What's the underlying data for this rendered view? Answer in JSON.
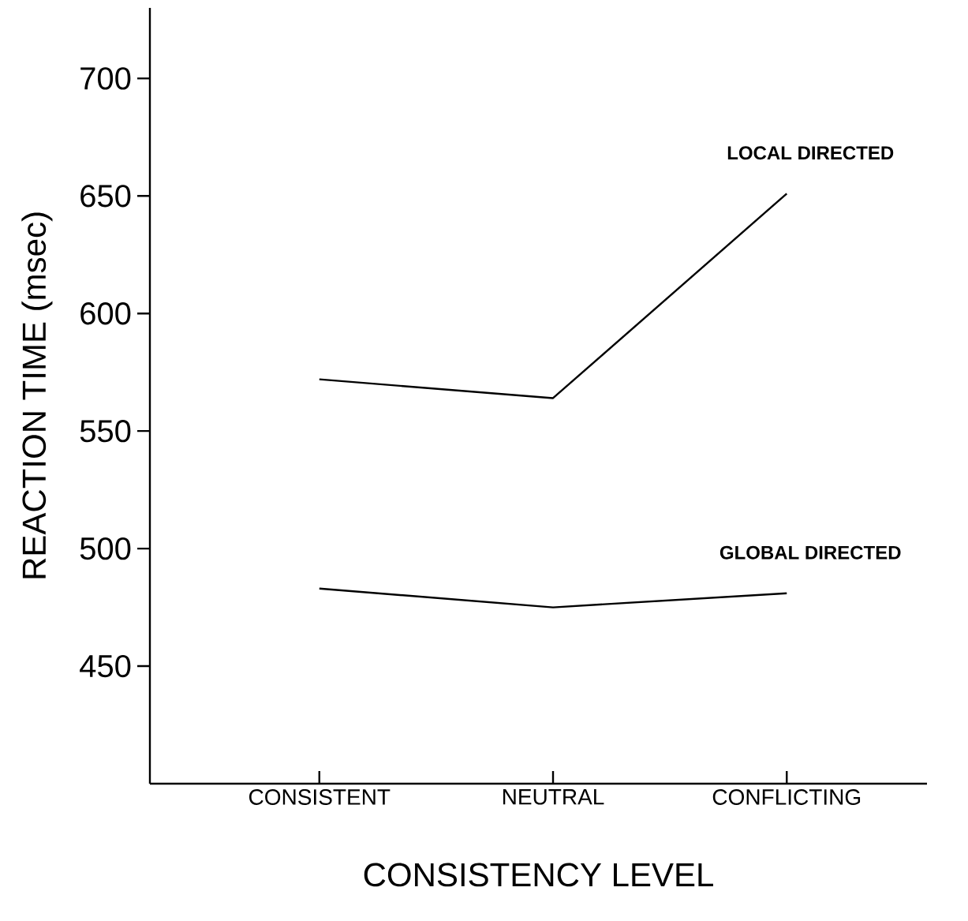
{
  "chart_data": {
    "type": "line",
    "xlabel": "CONSISTENCY LEVEL",
    "ylabel": "REACTION TIME (msec)",
    "categories": [
      "CONSISTENT",
      "NEUTRAL",
      "CONFLICTING"
    ],
    "series": [
      {
        "name": "LOCAL DIRECTED",
        "color": "#000000",
        "values": [
          572,
          564,
          651
        ]
      },
      {
        "name": "GLOBAL DIRECTED",
        "color": "#000000",
        "values": [
          483,
          475,
          481
        ]
      }
    ],
    "ylim": [
      400,
      730
    ],
    "yticks": [
      450,
      500,
      550,
      600,
      650,
      700
    ],
    "grid": false,
    "legend": false,
    "marker": "none",
    "line_style": "solid"
  }
}
